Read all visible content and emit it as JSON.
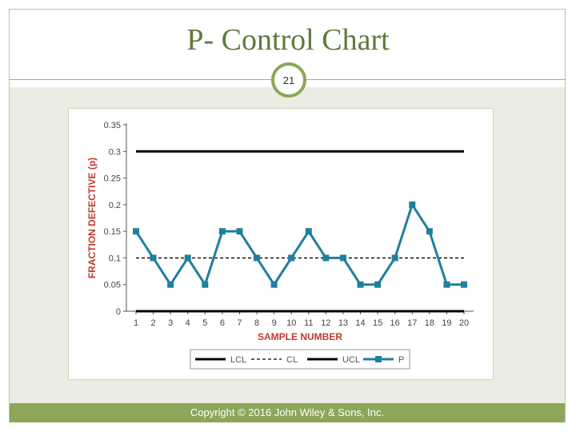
{
  "slide": {
    "title": "P- Control Chart",
    "page_number": "21",
    "footer": "Copyright © 2016 John Wiley & Sons, Inc."
  },
  "colors": {
    "accent_green": "#8ca65a",
    "title_green": "#5f7a3a",
    "axis_label_orange": "#c0392b",
    "series_blue": "#1f7f9e",
    "limit_black": "#000000"
  },
  "chart_data": {
    "type": "line",
    "xlabel": "SAMPLE NUMBER",
    "ylabel": "FRACTION DEFECTIVE (p)",
    "ylim": [
      0,
      0.35
    ],
    "yticks": [
      "0",
      "0.05",
      "0.1",
      "0.15",
      "0.2",
      "0.25",
      "0.3",
      "0.35"
    ],
    "x": [
      1,
      2,
      3,
      4,
      5,
      6,
      7,
      8,
      9,
      10,
      11,
      12,
      13,
      14,
      15,
      16,
      17,
      18,
      19,
      20
    ],
    "series": [
      {
        "name": "LCL",
        "style": "solid",
        "values": [
          0,
          0,
          0,
          0,
          0,
          0,
          0,
          0,
          0,
          0,
          0,
          0,
          0,
          0,
          0,
          0,
          0,
          0,
          0,
          0
        ]
      },
      {
        "name": "CL",
        "style": "dashed",
        "values": [
          0.1,
          0.1,
          0.1,
          0.1,
          0.1,
          0.1,
          0.1,
          0.1,
          0.1,
          0.1,
          0.1,
          0.1,
          0.1,
          0.1,
          0.1,
          0.1,
          0.1,
          0.1,
          0.1,
          0.1
        ]
      },
      {
        "name": "UCL",
        "style": "solid",
        "values": [
          0.3,
          0.3,
          0.3,
          0.3,
          0.3,
          0.3,
          0.3,
          0.3,
          0.3,
          0.3,
          0.3,
          0.3,
          0.3,
          0.3,
          0.3,
          0.3,
          0.3,
          0.3,
          0.3,
          0.3
        ]
      },
      {
        "name": "P",
        "style": "markers",
        "values": [
          0.15,
          0.1,
          0.05,
          0.1,
          0.05,
          0.15,
          0.15,
          0.1,
          0.05,
          0.1,
          0.15,
          0.1,
          0.1,
          0.05,
          0.05,
          0.1,
          0.2,
          0.15,
          0.05,
          0.05
        ]
      }
    ],
    "legend_position": "bottom",
    "grid": false
  }
}
